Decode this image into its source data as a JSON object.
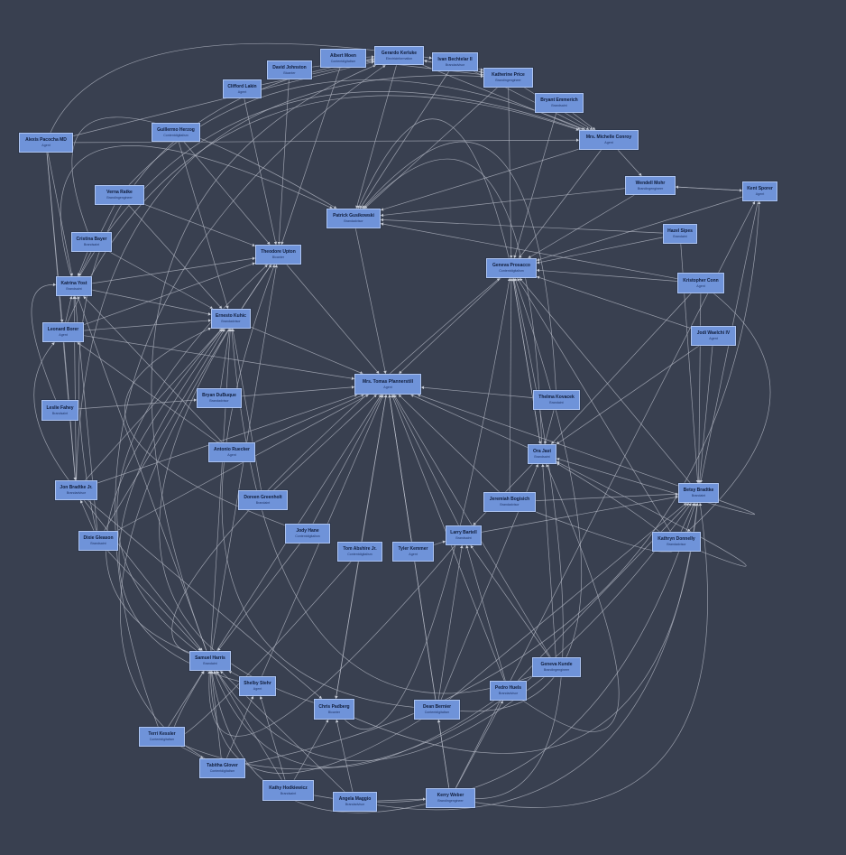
{
  "nodes": [
    {
      "id": "albert",
      "name": "Albert Moen",
      "role": "Contentdigitalism"
    },
    {
      "id": "gerardo",
      "name": "Gerardo Kerluke",
      "role": "Electricinformation"
    },
    {
      "id": "ivan",
      "name": "Ivan Bechtelar II",
      "role": "Brandadvisor"
    },
    {
      "id": "david",
      "name": "David Johnston",
      "role": "Bicanter"
    },
    {
      "id": "clifford",
      "name": "Clifford Lakin",
      "role": "Agent"
    },
    {
      "id": "katherine",
      "name": "Katherine Price",
      "role": "Brandingengineer"
    },
    {
      "id": "bryant",
      "name": "Bryant Emmerich",
      "role": "Brandsaint"
    },
    {
      "id": "alexis",
      "name": "Alexis Pacocha MD",
      "role": "Agent"
    },
    {
      "id": "guillermo",
      "name": "Guillermo Herzog",
      "role": "Contentdigitalism"
    },
    {
      "id": "michelle",
      "name": "Mrs. Michelle Conroy",
      "role": "Agent"
    },
    {
      "id": "wendell",
      "name": "Wendell Mohr",
      "role": "Brandingengineer"
    },
    {
      "id": "kent",
      "name": "Kent Sporer",
      "role": "Agent"
    },
    {
      "id": "verna",
      "name": "Verna Ratke",
      "role": "Brandingengineer"
    },
    {
      "id": "patrick",
      "name": "Patrick Gusikowski",
      "role": "Brandadvisor"
    },
    {
      "id": "hazel",
      "name": "Hazel Sipes",
      "role": "Brandaint"
    },
    {
      "id": "cristina",
      "name": "Cristina Bayer",
      "role": "Brandsaint"
    },
    {
      "id": "theodore",
      "name": "Theodore Upton",
      "role": "Bicanter"
    },
    {
      "id": "geneva_p",
      "name": "Geneva Prosacco",
      "role": "Contentdigitalism"
    },
    {
      "id": "kristopher",
      "name": "Kristopher Conn",
      "role": "Agent"
    },
    {
      "id": "katrina",
      "name": "Katrina Yost",
      "role": "Brandsaint"
    },
    {
      "id": "ernesto",
      "name": "Ernesto Kuhic",
      "role": "Brandadvisor"
    },
    {
      "id": "leonard",
      "name": "Leonard Borer",
      "role": "Agent"
    },
    {
      "id": "jodi",
      "name": "Jodi Waelchi IV",
      "role": "Agent"
    },
    {
      "id": "tomas",
      "name": "Mrs. Tomas Pfannerstill",
      "role": "Agent"
    },
    {
      "id": "bryan",
      "name": "Bryan DuBuque",
      "role": "Brandadvisor"
    },
    {
      "id": "thelma",
      "name": "Thelma Kovacek",
      "role": "Brandaint"
    },
    {
      "id": "leslie",
      "name": "Leslie Fahey",
      "role": "Brandsaint"
    },
    {
      "id": "ora",
      "name": "Ora Jast",
      "role": "Brandsaint"
    },
    {
      "id": "antonio",
      "name": "Antonio Ruecker",
      "role": "Agent"
    },
    {
      "id": "jon",
      "name": "Jon Bradtke Jr.",
      "role": "Brandadvisor"
    },
    {
      "id": "doreen",
      "name": "Doreen Greenholt",
      "role": "Brandaint"
    },
    {
      "id": "jeremiah",
      "name": "Jeremiah Bogisich",
      "role": "Brandadvisor"
    },
    {
      "id": "betsy",
      "name": "Betsy Bradtke",
      "role": "Brandaint"
    },
    {
      "id": "jody",
      "name": "Jody Hane",
      "role": "Contentdigitalism"
    },
    {
      "id": "tom",
      "name": "Tom Abshire Jr.",
      "role": "Contentdigitalism"
    },
    {
      "id": "tyler",
      "name": "Tyler Kemmer",
      "role": "Agent"
    },
    {
      "id": "larry",
      "name": "Larry Bartell",
      "role": "Brandsaint"
    },
    {
      "id": "kathryn",
      "name": "Kathryn Donnelly",
      "role": "Brandadvisor"
    },
    {
      "id": "dixie",
      "name": "Dixie Gleason",
      "role": "Brandsaint"
    },
    {
      "id": "samuel",
      "name": "Samuel Harris",
      "role": "Brandaint"
    },
    {
      "id": "geneva_k",
      "name": "Geneva Kunde",
      "role": "Brandingengineer"
    },
    {
      "id": "shelby",
      "name": "Shelby Stehr",
      "role": "Agent"
    },
    {
      "id": "pedro",
      "name": "Pedro Huels",
      "role": "Brandadvisor"
    },
    {
      "id": "chris",
      "name": "Chris Padberg",
      "role": "Bicanter"
    },
    {
      "id": "dean",
      "name": "Dean Bernier",
      "role": "Contentdigitalism"
    },
    {
      "id": "terri",
      "name": "Terri Kessler",
      "role": "Contentdigitalism"
    },
    {
      "id": "tabitha",
      "name": "Tabitha Glover",
      "role": "Contentdigitalism"
    },
    {
      "id": "kathy",
      "name": "Kathy Hodkiewicz",
      "role": "Brandsaint"
    },
    {
      "id": "angela",
      "name": "Angela Maggio",
      "role": "Brandadvisor"
    },
    {
      "id": "kerry",
      "name": "Kerry Weber",
      "role": "Brandingengineer"
    }
  ],
  "edges": [
    [
      "bryan",
      "tomas"
    ],
    [
      "ernesto",
      "tomas"
    ],
    [
      "theodore",
      "tomas"
    ],
    [
      "patrick",
      "tomas"
    ],
    [
      "geneva_p",
      "tomas"
    ],
    [
      "thelma",
      "tomas"
    ],
    [
      "ora",
      "tomas"
    ],
    [
      "jeremiah",
      "tomas"
    ],
    [
      "larry",
      "tomas"
    ],
    [
      "tyler",
      "tomas"
    ],
    [
      "tom",
      "tomas"
    ],
    [
      "jody",
      "tomas"
    ],
    [
      "doreen",
      "tomas"
    ],
    [
      "antonio",
      "tomas"
    ],
    [
      "samuel",
      "tomas"
    ],
    [
      "chris",
      "tomas"
    ],
    [
      "dean",
      "tomas"
    ],
    [
      "pedro",
      "tomas"
    ],
    [
      "kerry",
      "tomas"
    ],
    [
      "geneva_k",
      "tomas"
    ],
    [
      "shelby",
      "tomas"
    ],
    [
      "betsy",
      "tomas"
    ],
    [
      "dixie",
      "tomas"
    ],
    [
      "jon",
      "tomas"
    ],
    [
      "leonard",
      "tomas"
    ],
    [
      "katrina",
      "ernesto"
    ],
    [
      "verna",
      "ernesto"
    ],
    [
      "cristina",
      "ernesto"
    ],
    [
      "leonard",
      "ernesto"
    ],
    [
      "guillermo",
      "ernesto"
    ],
    [
      "jon",
      "ernesto"
    ],
    [
      "dixie",
      "ernesto"
    ],
    [
      "samuel",
      "ernesto"
    ],
    [
      "clifford",
      "theodore"
    ],
    [
      "david",
      "theodore"
    ],
    [
      "albert",
      "theodore"
    ],
    [
      "guillermo",
      "theodore"
    ],
    [
      "katrina",
      "theodore"
    ],
    [
      "verna",
      "theodore"
    ],
    [
      "samuel",
      "theodore"
    ],
    [
      "leonard",
      "theodore"
    ],
    [
      "gerardo",
      "patrick"
    ],
    [
      "ivan",
      "patrick"
    ],
    [
      "michelle",
      "patrick"
    ],
    [
      "wendell",
      "patrick"
    ],
    [
      "katherine",
      "patrick"
    ],
    [
      "hazel",
      "patrick"
    ],
    [
      "kristopher",
      "patrick"
    ],
    [
      "michelle",
      "geneva_p"
    ],
    [
      "bryant",
      "geneva_p"
    ],
    [
      "katherine",
      "geneva_p"
    ],
    [
      "kent",
      "geneva_p"
    ],
    [
      "hazel",
      "geneva_p"
    ],
    [
      "kristopher",
      "geneva_p"
    ],
    [
      "ora",
      "geneva_p"
    ],
    [
      "betsy",
      "geneva_p"
    ],
    [
      "jeremiah",
      "geneva_p"
    ],
    [
      "wendell",
      "geneva_p"
    ],
    [
      "thelma",
      "ora"
    ],
    [
      "kristopher",
      "ora"
    ],
    [
      "jodi",
      "ora"
    ],
    [
      "geneva_p",
      "ora"
    ],
    [
      "kent",
      "betsy"
    ],
    [
      "hazel",
      "betsy"
    ],
    [
      "kristopher",
      "betsy"
    ],
    [
      "jodi",
      "betsy"
    ],
    [
      "kathryn",
      "betsy"
    ],
    [
      "jeremiah",
      "betsy"
    ],
    [
      "pedro",
      "betsy"
    ],
    [
      "dean",
      "betsy"
    ],
    [
      "larry",
      "betsy"
    ],
    [
      "kerry",
      "kent"
    ],
    [
      "wendell",
      "kent"
    ],
    [
      "kent",
      "wendell"
    ],
    [
      "michelle",
      "wendell"
    ],
    [
      "katherine",
      "michelle"
    ],
    [
      "bryant",
      "michelle"
    ],
    [
      "ivan",
      "michelle"
    ],
    [
      "gerardo",
      "michelle"
    ],
    [
      "alexis",
      "michelle"
    ],
    [
      "albert",
      "katherine"
    ],
    [
      "gerardo",
      "katherine"
    ],
    [
      "ivan",
      "katherine"
    ],
    [
      "alexis",
      "gerardo"
    ],
    [
      "david",
      "gerardo"
    ],
    [
      "clifford",
      "gerardo"
    ],
    [
      "albert",
      "gerardo"
    ],
    [
      "katherine",
      "gerardo"
    ],
    [
      "alexis",
      "leonard"
    ],
    [
      "alexis",
      "katrina"
    ],
    [
      "alexis",
      "jon"
    ],
    [
      "verna",
      "katrina"
    ],
    [
      "cristina",
      "katrina"
    ],
    [
      "leonard",
      "katrina"
    ],
    [
      "jon",
      "katrina"
    ],
    [
      "leslie",
      "bryan"
    ],
    [
      "leonard",
      "jon"
    ],
    [
      "dixie",
      "jon"
    ],
    [
      "antonio",
      "leonard"
    ],
    [
      "jody",
      "samuel"
    ],
    [
      "terri",
      "samuel"
    ],
    [
      "tabitha",
      "samuel"
    ],
    [
      "kathy",
      "samuel"
    ],
    [
      "angela",
      "samuel"
    ],
    [
      "shelby",
      "samuel"
    ],
    [
      "dixie",
      "samuel"
    ],
    [
      "jon",
      "samuel"
    ],
    [
      "kathy",
      "shelby"
    ],
    [
      "tabitha",
      "shelby"
    ],
    [
      "angela",
      "chris"
    ],
    [
      "kathy",
      "chris"
    ],
    [
      "tom",
      "chris"
    ],
    [
      "jon",
      "chris"
    ],
    [
      "kerry",
      "dean"
    ],
    [
      "dean",
      "larry"
    ],
    [
      "pedro",
      "larry"
    ],
    [
      "geneva_k",
      "larry"
    ],
    [
      "kerry",
      "pedro"
    ],
    [
      "angela",
      "kerry"
    ],
    [
      "ora",
      "larry"
    ],
    [
      "tyler",
      "larry"
    ],
    [
      "terri",
      "tabitha"
    ],
    [
      "samuel",
      "katrina"
    ],
    [
      "dixie",
      "katrina"
    ],
    [
      "doreen",
      "ernesto"
    ],
    [
      "bryan",
      "ernesto"
    ],
    [
      "antonio",
      "katrina"
    ],
    [
      "jodi",
      "geneva_p"
    ],
    [
      "kathryn",
      "geneva_p"
    ],
    [
      "dean",
      "ora"
    ],
    [
      "geneva_k",
      "ora"
    ]
  ],
  "curved_edges": [
    [
      "samuel",
      "geneva_p"
    ],
    [
      "chris",
      "geneva_p"
    ],
    [
      "dean",
      "geneva_p"
    ],
    [
      "kerry",
      "geneva_p"
    ],
    [
      "pedro",
      "ora"
    ],
    [
      "katrina",
      "michelle"
    ],
    [
      "leonard",
      "michelle"
    ],
    [
      "jon",
      "katherine"
    ],
    [
      "dixie",
      "gerardo"
    ],
    [
      "samuel",
      "gerardo"
    ],
    [
      "terri",
      "gerardo"
    ],
    [
      "chris",
      "theodore"
    ],
    [
      "dean",
      "theodore"
    ],
    [
      "geneva_k",
      "ernesto"
    ],
    [
      "angela",
      "betsy"
    ],
    [
      "kerry",
      "betsy"
    ],
    [
      "terri",
      "betsy"
    ],
    [
      "tabitha",
      "kent"
    ],
    [
      "kathy",
      "betsy"
    ],
    [
      "chris",
      "betsy"
    ],
    [
      "samuel",
      "ernesto"
    ],
    [
      "shelby",
      "ernesto"
    ],
    [
      "dean",
      "samuel"
    ],
    [
      "pedro",
      "samuel"
    ],
    [
      "geneva_k",
      "samuel"
    ],
    [
      "kerry",
      "samuel"
    ],
    [
      "larry",
      "samuel"
    ],
    [
      "tom",
      "samuel"
    ],
    [
      "alexis",
      "ivan"
    ],
    [
      "verna",
      "michelle"
    ],
    [
      "leslie",
      "katrina"
    ],
    [
      "jon",
      "leonard"
    ],
    [
      "katrina",
      "patrick"
    ],
    [
      "cristina",
      "patrick"
    ],
    [
      "geneva_p",
      "patrick"
    ],
    [
      "ora",
      "patrick"
    ],
    [
      "thelma",
      "patrick"
    ],
    [
      "jeremiah",
      "ora"
    ],
    [
      "betsy",
      "ora"
    ],
    [
      "kathryn",
      "ora"
    ],
    [
      "samuel",
      "theodore"
    ],
    [
      "jody",
      "ernesto"
    ],
    [
      "tabitha",
      "theodore"
    ],
    [
      "kristopher",
      "kathryn"
    ]
  ]
}
